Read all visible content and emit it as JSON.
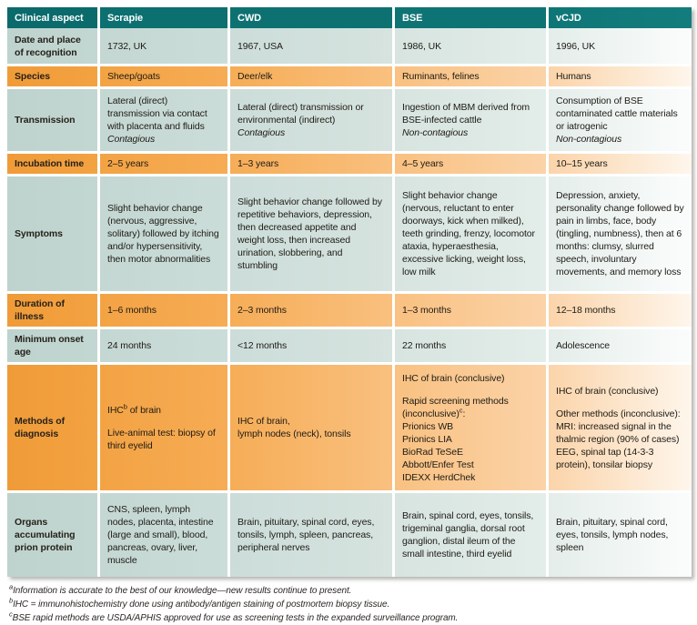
{
  "table": {
    "columns": [
      "Clinical aspect",
      "Scrapie",
      "CWD",
      "BSE",
      "vCJD"
    ],
    "rows": [
      {
        "label": "Date and place of recognition",
        "cells": [
          "1732, UK",
          "1967, USA",
          "1986, UK",
          "1996, UK"
        ]
      },
      {
        "label": "Species",
        "cells": [
          "Sheep/goats",
          "Deer/elk",
          "Ruminants, felines",
          "Humans"
        ]
      },
      {
        "label": "Transmission",
        "cells": [
          "Lateral (direct) transmission via contact with placenta and fluids\n*Contagious*",
          "Lateral (direct) transmission or environmental (indirect)\n*Contagious*",
          "Ingestion of MBM derived from BSE-infected cattle\n*Non-contagious*",
          "Consumption of BSE contaminated cattle materials or iatrogenic\n*Non-contagious*"
        ]
      },
      {
        "label": "Incubation time",
        "cells": [
          "2–5 years",
          "1–3 years",
          "4–5 years",
          "10–15 years"
        ]
      },
      {
        "label": "Symptoms",
        "cells": [
          "Slight behavior change (nervous, aggressive, solitary) followed by itching and/or hypersensitivity, then motor abnormalities",
          "Slight behavior change followed by repetitive behaviors, depression, then decreased appetite and weight loss, then increased urination, slobbering, and stumbling",
          "Slight behavior change (nervous, reluctant to enter doorways, kick when milked), teeth grinding, frenzy, locomotor ataxia, hyperaesthesia, excessive licking, weight loss, low milk",
          "Depression, anxiety, personality change followed by pain in limbs, face, body (tingling, numbness), then at 6 months: clumsy, slurred speech, involuntary movements, and memory loss"
        ]
      },
      {
        "label": "Duration of illness",
        "cells": [
          "1–6 months",
          "2–3 months",
          "1–3 months",
          "12–18 months"
        ]
      },
      {
        "label": "Minimum onset age",
        "cells": [
          "24 months",
          "<12 months",
          "22 months",
          "Adolescence"
        ]
      },
      {
        "label": "Methods of diagnosis",
        "cells": [
          "IHC^b of brain\n\nLive-animal test: biopsy of third eyelid",
          "IHC of brain,\nlymph nodes (neck), tonsils",
          "IHC of brain (conclusive)\n\nRapid screening methods (inconclusive)^c:\nPrionics WB\nPrionics LIA\nBioRad TeSeE\nAbbott/Enfer Test\nIDEXX HerdChek",
          "IHC of brain (conclusive)\n\nOther methods (inconclusive):\nMRI: increased signal in the thalmic region (90% of cases)\nEEG, spinal tap (14-3-3 protein), tonsilar biopsy"
        ]
      },
      {
        "label": "Organs accumulating prion protein",
        "cells": [
          "CNS, spleen, lymph nodes, placenta, intestine (large and small), blood, pancreas, ovary, liver, muscle",
          "Brain, pituitary, spinal cord, eyes, tonsils, lymph, spleen, pancreas, peripheral nerves",
          "Brain, spinal cord, eyes, tonsils, trigeminal ganglia, dorsal root ganglion, distal ileum of the small intestine, third eyelid",
          "Brain, pituitary, spinal cord, eyes, tonsils, lymph nodes, spleen"
        ]
      }
    ]
  },
  "footnotes": [
    {
      "marker": "a",
      "text": "Information is accurate to the best of our knowledge—new results continue to present."
    },
    {
      "marker": "b",
      "text": "IHC = immunohistochemistry done using antibody/antigen staining of postmortem biopsy tissue."
    },
    {
      "marker": "c",
      "text": "BSE rapid methods are USDA/APHIS approved for use as screening tests in the expanded surveillance program."
    }
  ],
  "colors": {
    "header_teal": "#0c6f70",
    "row_teal": "#c4d7d3",
    "row_orange": "#f3a344",
    "text": "#1e1b15"
  }
}
